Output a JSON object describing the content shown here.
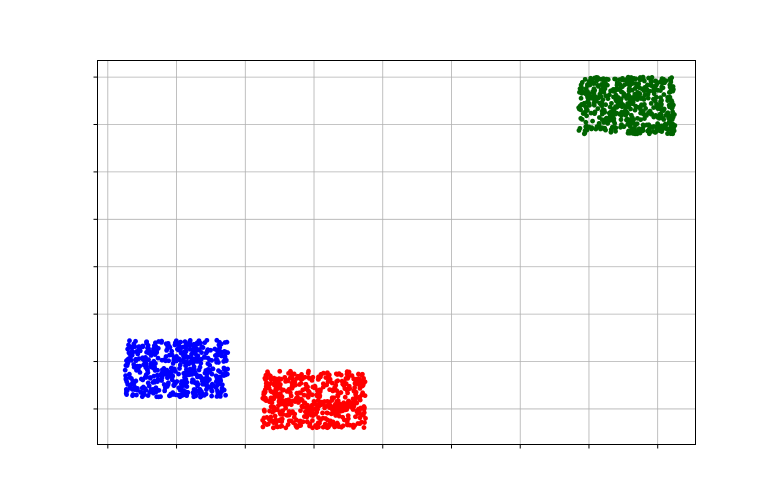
{
  "chart_data": {
    "type": "scatter",
    "title": "",
    "xlabel": "",
    "ylabel": "",
    "tick_labels_visible": false,
    "grid": true,
    "legend": "none",
    "xlim": [
      -0.15,
      8.55
    ],
    "ylim": [
      -0.75,
      7.35
    ],
    "xticks": [
      0,
      1,
      2,
      3,
      4,
      5,
      6,
      7,
      8
    ],
    "yticks": [
      0,
      1,
      2,
      3,
      4,
      5,
      6,
      7
    ],
    "point_count_per_series": 500,
    "series": [
      {
        "color": "#0000ff",
        "x_range": [
          0.25,
          1.75
        ],
        "y_range": [
          0.25,
          1.45
        ]
      },
      {
        "color": "#ff0000",
        "x_range": [
          2.25,
          3.75
        ],
        "y_range": [
          -0.4,
          0.8
        ]
      },
      {
        "color": "#006400",
        "x_range": [
          6.85,
          8.25
        ],
        "y_range": [
          5.8,
          7.0
        ]
      }
    ]
  }
}
